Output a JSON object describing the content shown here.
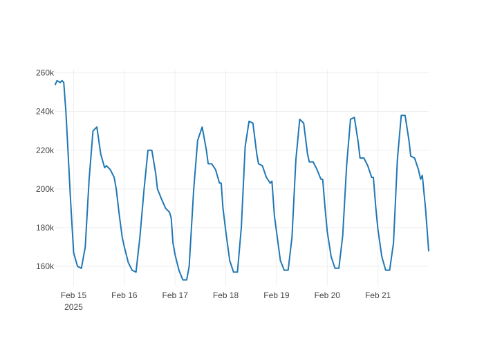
{
  "chart_data": {
    "type": "line",
    "title": "",
    "xlabel": "",
    "ylabel": "",
    "ylim": [
      150000,
      262000
    ],
    "xlim": [
      "2025-02-14T15:20",
      "2025-02-22T00:00"
    ],
    "grid": true,
    "colors": {
      "line": "#1f77b4",
      "grid": "#eeeeee",
      "text": "#444444"
    },
    "x_ticks": [
      {
        "value": "2025-02-15",
        "label": "Feb 15",
        "sublabel": "2025"
      },
      {
        "value": "2025-02-16",
        "label": "Feb 16",
        "sublabel": ""
      },
      {
        "value": "2025-02-17",
        "label": "Feb 17",
        "sublabel": ""
      },
      {
        "value": "2025-02-18",
        "label": "Feb 18",
        "sublabel": ""
      },
      {
        "value": "2025-02-19",
        "label": "Feb 19",
        "sublabel": ""
      },
      {
        "value": "2025-02-20",
        "label": "Feb 20",
        "sublabel": ""
      },
      {
        "value": "2025-02-21",
        "label": "Feb 21",
        "sublabel": ""
      }
    ],
    "y_ticks": [
      {
        "value": 160000,
        "label": "160k"
      },
      {
        "value": 180000,
        "label": "180k"
      },
      {
        "value": 200000,
        "label": "200k"
      },
      {
        "value": 220000,
        "label": "220k"
      },
      {
        "value": 240000,
        "label": "240k"
      },
      {
        "value": 260000,
        "label": "260k"
      }
    ],
    "series": [
      {
        "x": [
          "2025-02-14T15:20",
          "2025-02-14T16:10",
          "2025-02-14T17:40",
          "2025-02-14T18:30",
          "2025-02-14T19:20",
          "2025-02-14T20:20",
          "2025-02-14T21:20",
          "2025-02-14T22:30",
          "2025-02-15T00:00",
          "2025-02-15T01:50",
          "2025-02-15T03:40",
          "2025-02-15T05:30",
          "2025-02-15T07:20",
          "2025-02-15T09:10",
          "2025-02-15T11:00",
          "2025-02-15T12:50",
          "2025-02-15T14:40",
          "2025-02-15T15:30",
          "2025-02-15T17:20",
          "2025-02-15T19:10",
          "2025-02-15T20:10",
          "2025-02-15T21:40",
          "2025-02-15T23:00",
          "2025-02-16T00:00",
          "2025-02-16T01:50",
          "2025-02-16T03:40",
          "2025-02-16T05:30",
          "2025-02-16T07:20",
          "2025-02-16T09:20",
          "2025-02-16T11:10",
          "2025-02-16T13:00",
          "2025-02-16T14:50",
          "2025-02-16T15:40",
          "2025-02-16T17:30",
          "2025-02-16T19:30",
          "2025-02-16T21:20",
          "2025-02-16T22:10",
          "2025-02-16T23:00",
          "2025-02-17T00:00",
          "2025-02-17T01:50",
          "2025-02-17T03:40",
          "2025-02-17T05:30",
          "2025-02-17T06:40",
          "2025-02-17T08:50",
          "2025-02-17T10:40",
          "2025-02-17T12:50",
          "2025-02-17T14:50",
          "2025-02-17T15:40",
          "2025-02-17T17:20",
          "2025-02-17T19:10",
          "2025-02-17T21:00",
          "2025-02-17T21:50",
          "2025-02-17T22:40",
          "2025-02-18T00:00",
          "2025-02-18T01:50",
          "2025-02-18T03:40",
          "2025-02-18T05:30",
          "2025-02-18T07:20",
          "2025-02-18T09:10",
          "2025-02-18T11:00",
          "2025-02-18T12:50",
          "2025-02-18T14:40",
          "2025-02-18T15:30",
          "2025-02-18T17:20",
          "2025-02-18T19:10",
          "2025-02-18T21:00",
          "2025-02-18T21:50",
          "2025-02-18T23:00",
          "2025-02-19T00:00",
          "2025-02-19T01:50",
          "2025-02-19T03:40",
          "2025-02-19T05:30",
          "2025-02-19T07:20",
          "2025-02-19T09:10",
          "2025-02-19T11:00",
          "2025-02-19T12:50",
          "2025-02-19T14:40",
          "2025-02-19T15:30",
          "2025-02-19T17:20",
          "2025-02-19T19:10",
          "2025-02-19T21:00",
          "2025-02-19T21:50",
          "2025-02-19T23:00",
          "2025-02-20T00:00",
          "2025-02-20T01:50",
          "2025-02-20T03:40",
          "2025-02-20T05:30",
          "2025-02-20T07:20",
          "2025-02-20T09:10",
          "2025-02-20T11:00",
          "2025-02-20T12:50",
          "2025-02-20T14:40",
          "2025-02-20T15:30",
          "2025-02-20T17:20",
          "2025-02-20T19:10",
          "2025-02-20T21:00",
          "2025-02-20T21:50",
          "2025-02-20T23:00",
          "2025-02-21T00:00",
          "2025-02-21T01:50",
          "2025-02-21T03:40",
          "2025-02-21T05:30",
          "2025-02-21T07:20",
          "2025-02-21T09:10",
          "2025-02-21T11:00",
          "2025-02-21T12:50",
          "2025-02-21T14:40",
          "2025-02-21T15:30",
          "2025-02-21T17:20",
          "2025-02-21T19:10",
          "2025-02-21T20:10",
          "2025-02-21T21:00",
          "2025-02-21T22:30",
          "2025-02-22T00:00"
        ],
        "values": [
          254000,
          256000,
          255000,
          256000,
          255000,
          240000,
          220000,
          195000,
          167000,
          160000,
          159000,
          170000,
          205000,
          230000,
          232000,
          218000,
          211000,
          212000,
          210000,
          206000,
          200000,
          186000,
          175000,
          170000,
          162000,
          158000,
          157000,
          175000,
          200000,
          220000,
          220000,
          208000,
          200000,
          195000,
          190000,
          188000,
          185000,
          172000,
          166000,
          158000,
          153000,
          153000,
          160000,
          200000,
          225000,
          232000,
          220000,
          213000,
          213000,
          210000,
          203000,
          203000,
          190000,
          178000,
          163000,
          157000,
          157000,
          180000,
          222000,
          235000,
          234000,
          218000,
          213000,
          212000,
          206000,
          203000,
          204000,
          186000,
          178000,
          163000,
          158000,
          158000,
          175000,
          215000,
          236000,
          234000,
          218000,
          214000,
          214000,
          210000,
          205000,
          205000,
          190000,
          178000,
          165000,
          159000,
          159000,
          176000,
          212000,
          236000,
          237000,
          224000,
          216000,
          216000,
          212000,
          206000,
          206000,
          190000,
          179000,
          165000,
          158000,
          158000,
          172000,
          215000,
          238000,
          238000,
          225000,
          217000,
          216000,
          210000,
          205000,
          207000,
          190000,
          168000
        ]
      }
    ]
  }
}
